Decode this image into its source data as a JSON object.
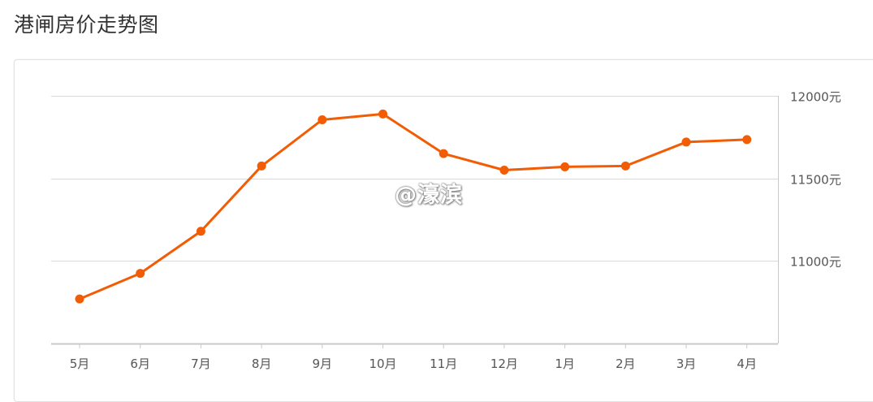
{
  "header": {
    "title": "港闸房价走势图"
  },
  "watermark": {
    "text": "@濠滨"
  },
  "chart_data": {
    "type": "line",
    "title": "港闸房价走势图",
    "categories": [
      "5月",
      "6月",
      "7月",
      "8月",
      "9月",
      "10月",
      "11月",
      "12月",
      "1月",
      "2月",
      "3月",
      "4月"
    ],
    "series": [
      {
        "values": [
          10770,
          10925,
          11180,
          11575,
          11855,
          11890,
          11650,
          11550,
          11570,
          11575,
          11720,
          11735
        ]
      }
    ],
    "yticks": [
      11000,
      11500,
      12000
    ],
    "ytick_labels": [
      "11000元",
      "11500元",
      "12000元"
    ],
    "ylim": [
      10500,
      12000
    ],
    "y_axis_position": "right",
    "grid": true,
    "legend": "none",
    "colors": {
      "line": "#f25c05",
      "grid": "#d9d9d9",
      "axis": "#c8c8c8"
    }
  }
}
